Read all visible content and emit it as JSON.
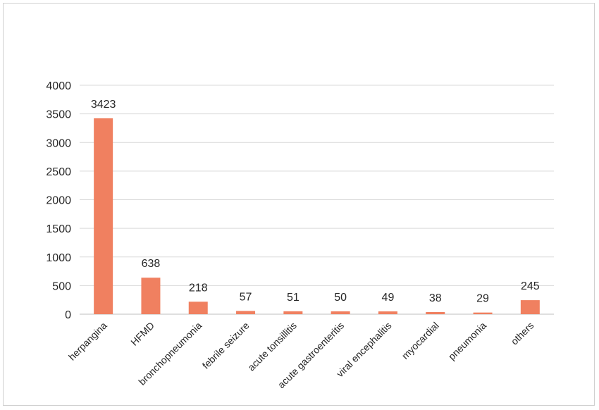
{
  "chart_data": {
    "type": "bar",
    "title": "",
    "xlabel": "",
    "ylabel": "",
    "categories": [
      "herpangina",
      "HFMD",
      "bronchopneumonia",
      "febrile seizure",
      "acute tonsillitis",
      "acute gastroenteritis",
      "viral encephalitis",
      "myocardial",
      "pneumonia",
      "others"
    ],
    "values": [
      3423,
      638,
      218,
      57,
      51,
      50,
      49,
      38,
      29,
      245
    ],
    "data_labels": [
      "3423",
      "638",
      "218",
      "57",
      "51",
      "50",
      "49",
      "38",
      "29",
      "245"
    ],
    "ylim": [
      0,
      4000
    ],
    "yticks": [
      0,
      500,
      1000,
      1500,
      2000,
      2500,
      3000,
      3500,
      4000
    ],
    "ytick_labels": [
      "0",
      "500",
      "1000",
      "1500",
      "2000",
      "2500",
      "3000",
      "3500",
      "4000"
    ],
    "grid": true,
    "legend": "none",
    "bar_color": "#f08060"
  }
}
